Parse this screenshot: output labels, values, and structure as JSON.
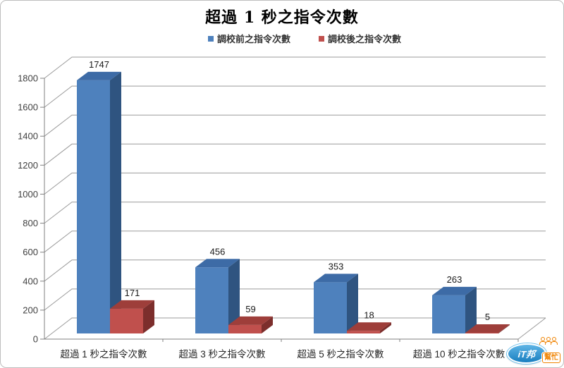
{
  "title": "超過 1 秒之指令次數",
  "chart_data": {
    "type": "bar",
    "variant": "3d-clustered-column",
    "title": "超過 1 秒之指令次數",
    "xlabel": "",
    "ylabel": "",
    "categories": [
      "超過 1 秒之指令次數",
      "超過 3 秒之指令次數",
      "超過 5 秒之指令次數",
      "超過 10 秒之指令次數"
    ],
    "series": [
      {
        "name": "調校前之指令次數",
        "values": [
          1747,
          456,
          353,
          263
        ],
        "color_front": "#4E81BD",
        "color_top": "#3D6BA6",
        "color_side": "#2F5480"
      },
      {
        "name": "調校後之指令次數",
        "values": [
          171,
          59,
          18,
          5
        ],
        "color_front": "#C0504D",
        "color_top": "#9E3E3A",
        "color_side": "#7C2E2C"
      }
    ],
    "ylim": [
      0,
      1800
    ],
    "yticks": [
      0,
      200,
      400,
      600,
      800,
      1000,
      1200,
      1400,
      1600,
      1800
    ],
    "grid": true,
    "legend_position": "top",
    "data_labels": true,
    "colors": {
      "grid": "#9B9B9B",
      "axis": "#808080",
      "tick_label": "#3F3F3F",
      "category_label": "#262626",
      "data_label": "#1A1A1A"
    }
  },
  "watermark": {
    "ellipse_text": "iT邦",
    "badge_text": "幫忙"
  }
}
